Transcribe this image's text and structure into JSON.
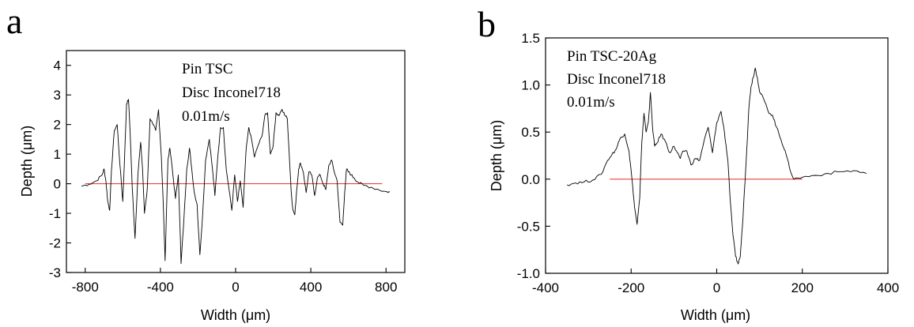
{
  "chart_data": [
    {
      "type": "line",
      "panel_label": "a",
      "xlabel": "Width (μm)",
      "ylabel": "Depth (μm)",
      "xlim": [
        -900,
        900
      ],
      "ylim": [
        -3,
        4.5
      ],
      "xticks": [
        -800,
        -400,
        0,
        400,
        800
      ],
      "xtick_labels": [
        "-800",
        "-400",
        "0",
        "400",
        "800"
      ],
      "yticks": [
        -3,
        -2,
        -1,
        0,
        1,
        2,
        3,
        4
      ],
      "ytick_labels": [
        "-3",
        "-2",
        "-1",
        "0",
        "1",
        "2",
        "3",
        "4"
      ],
      "annotations": [
        "Pin TSC",
        "Disc Inconel718",
        "0.01m/s"
      ],
      "reference_line": {
        "y": 0,
        "x_range": [
          -800,
          780
        ],
        "color": "#e8453c"
      },
      "series_color": "#000000",
      "series": [
        {
          "x": [
            -820,
            -780,
            -740,
            -710,
            -700,
            -690,
            -680,
            -670,
            -660,
            -645,
            -630,
            -615,
            -600,
            -590,
            -580,
            -570,
            -560,
            -550,
            -535,
            -520,
            -505,
            -495,
            -485,
            -470,
            -455,
            -440,
            -425,
            -410,
            -395,
            -385,
            -375,
            -360,
            -350,
            -335,
            -320,
            -305,
            -290,
            -275,
            -260,
            -245,
            -235,
            -220,
            -205,
            -190,
            -175,
            -160,
            -140,
            -125,
            -110,
            -95,
            -80,
            -65,
            -50,
            -35,
            -20,
            -5,
            10,
            25,
            40,
            55,
            70,
            85,
            100,
            120,
            140,
            155,
            170,
            185,
            200,
            215,
            230,
            245,
            255,
            265,
            275,
            285,
            295,
            305,
            315,
            325,
            335,
            345,
            360,
            375,
            390,
            405,
            420,
            435,
            450,
            465,
            480,
            495,
            510,
            525,
            540,
            555,
            570,
            580,
            590,
            600,
            615,
            630,
            650,
            680,
            720,
            760,
            800,
            820
          ],
          "y": [
            -0.08,
            -0.02,
            0.1,
            0.3,
            0.5,
            0.1,
            -0.6,
            -0.9,
            0.5,
            1.8,
            2.0,
            0.6,
            -0.6,
            1.0,
            2.7,
            2.85,
            1.6,
            -0.1,
            -1.85,
            0.3,
            1.4,
            0.5,
            -1.0,
            -0.2,
            2.2,
            2.0,
            1.8,
            2.5,
            0.9,
            -0.7,
            -2.6,
            0.8,
            1.2,
            0.4,
            -0.5,
            0.3,
            -2.7,
            -1.2,
            0.5,
            1.2,
            0.6,
            -0.3,
            -0.7,
            -2.4,
            -1.0,
            0.8,
            1.5,
            0.6,
            -0.4,
            0.9,
            1.9,
            1.9,
            0.5,
            -0.2,
            -0.9,
            0.3,
            -0.6,
            0.1,
            -0.8,
            1.1,
            1.9,
            1.5,
            0.9,
            1.3,
            1.6,
            2.3,
            2.4,
            1.0,
            1.3,
            2.4,
            2.3,
            2.5,
            2.4,
            2.3,
            2.2,
            1.0,
            -0.2,
            -0.9,
            -1.05,
            -0.2,
            0.5,
            0.7,
            0.4,
            -0.3,
            0.4,
            0.3,
            -0.4,
            0.2,
            0.3,
            0.0,
            -0.2,
            0.6,
            0.8,
            0.4,
            0.1,
            -1.3,
            -1.4,
            -0.3,
            0.5,
            0.4,
            0.3,
            0.2,
            0.05,
            -0.05,
            -0.12,
            -0.2,
            -0.27,
            -0.28
          ]
        }
      ]
    },
    {
      "type": "line",
      "panel_label": "b",
      "xlabel": "Width (μm)",
      "ylabel": "Depth (μm)",
      "xlim": [
        -400,
        400
      ],
      "ylim": [
        -1.0,
        1.5
      ],
      "xticks": [
        -400,
        -200,
        0,
        200,
        400
      ],
      "xtick_labels": [
        "-400",
        "-200",
        "0",
        "200",
        "400"
      ],
      "yticks": [
        -1.0,
        -0.5,
        0.0,
        0.5,
        1.0,
        1.5
      ],
      "ytick_labels": [
        "-1.0",
        "-0.5",
        "0.0",
        "0.5",
        "1.0",
        "1.5"
      ],
      "annotations": [
        "Pin TSC-20Ag",
        "Disc Inconel718",
        "0.01m/s"
      ],
      "reference_line": {
        "y": 0,
        "x_range": [
          -250,
          200
        ],
        "color": "#e8453c"
      },
      "series_color": "#000000",
      "series": [
        {
          "x": [
            -350,
            -330,
            -310,
            -290,
            -270,
            -255,
            -245,
            -235,
            -225,
            -215,
            -205,
            -198,
            -192,
            -186,
            -180,
            -175,
            -170,
            -165,
            -160,
            -155,
            -150,
            -145,
            -140,
            -130,
            -120,
            -110,
            -100,
            -92,
            -85,
            -78,
            -70,
            -60,
            -50,
            -40,
            -30,
            -20,
            -10,
            0,
            10,
            18,
            26,
            32,
            38,
            44,
            50,
            55,
            60,
            65,
            70,
            75,
            80,
            85,
            90,
            95,
            100,
            110,
            120,
            130,
            140,
            150,
            160,
            170,
            180,
            200,
            230,
            260,
            290,
            320,
            350
          ],
          "y": [
            -0.06,
            -0.04,
            -0.03,
            -0.01,
            0.05,
            0.2,
            0.26,
            0.32,
            0.44,
            0.48,
            0.3,
            0.0,
            -0.3,
            -0.48,
            -0.2,
            0.4,
            0.7,
            0.5,
            0.6,
            0.92,
            0.55,
            0.35,
            0.38,
            0.48,
            0.4,
            0.28,
            0.35,
            0.28,
            0.22,
            0.3,
            0.3,
            0.15,
            0.22,
            0.2,
            0.4,
            0.55,
            0.28,
            0.6,
            0.72,
            0.5,
            0.2,
            -0.25,
            -0.6,
            -0.82,
            -0.9,
            -0.82,
            -0.5,
            -0.1,
            0.3,
            0.75,
            0.98,
            1.08,
            1.18,
            1.08,
            0.93,
            0.85,
            0.72,
            0.68,
            0.55,
            0.42,
            0.3,
            0.12,
            0.0,
            0.02,
            0.04,
            0.06,
            0.08,
            0.09,
            0.06
          ]
        }
      ]
    }
  ]
}
